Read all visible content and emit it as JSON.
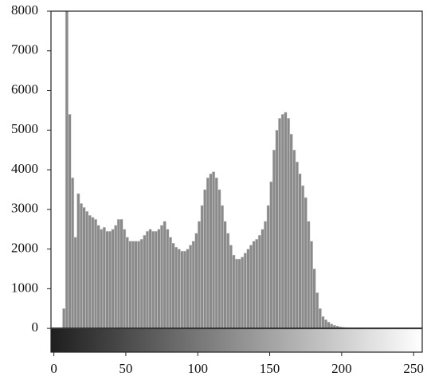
{
  "chart_data": {
    "type": "histogram",
    "bins": [
      0,
      2,
      4,
      6,
      8,
      10,
      12,
      14,
      16,
      18,
      20,
      22,
      24,
      26,
      28,
      30,
      32,
      34,
      36,
      38,
      40,
      42,
      44,
      46,
      48,
      50,
      52,
      54,
      56,
      58,
      60,
      62,
      64,
      66,
      68,
      70,
      72,
      74,
      76,
      78,
      80,
      82,
      84,
      86,
      88,
      90,
      92,
      94,
      96,
      98,
      100,
      102,
      104,
      106,
      108,
      110,
      112,
      114,
      116,
      118,
      120,
      122,
      124,
      126,
      128,
      130,
      132,
      134,
      136,
      138,
      140,
      142,
      144,
      146,
      148,
      150,
      152,
      154,
      156,
      158,
      160,
      162,
      164,
      166,
      168,
      170,
      172,
      174,
      176,
      178,
      180,
      182,
      184,
      186,
      188,
      190,
      192,
      194,
      196,
      198,
      200,
      202,
      204,
      206,
      208,
      210,
      212,
      214,
      216,
      218,
      220,
      222,
      224,
      226,
      228,
      230,
      232,
      234,
      236,
      238,
      240,
      242,
      244,
      246,
      248,
      250,
      252,
      254,
      256
    ],
    "values": [
      0,
      0,
      0,
      500,
      8200,
      5400,
      3800,
      2300,
      3400,
      3150,
      3050,
      2950,
      2850,
      2800,
      2750,
      2600,
      2500,
      2550,
      2450,
      2450,
      2500,
      2600,
      2750,
      2750,
      2500,
      2300,
      2200,
      2200,
      2200,
      2200,
      2250,
      2350,
      2450,
      2500,
      2450,
      2450,
      2500,
      2600,
      2700,
      2500,
      2300,
      2150,
      2050,
      2000,
      1950,
      1950,
      2000,
      2100,
      2200,
      2400,
      2700,
      3100,
      3500,
      3800,
      3900,
      3950,
      3800,
      3500,
      3100,
      2700,
      2400,
      2100,
      1850,
      1750,
      1750,
      1800,
      1900,
      2000,
      2100,
      2200,
      2250,
      2350,
      2500,
      2700,
      3100,
      3700,
      4500,
      5000,
      5300,
      5400,
      5450,
      5300,
      4900,
      4500,
      4200,
      3900,
      3600,
      3300,
      2700,
      2200,
      1500,
      900,
      500,
      300,
      220,
      160,
      110,
      80,
      60,
      40,
      30,
      20,
      15,
      10,
      8,
      0,
      0,
      0,
      0,
      0,
      0,
      0,
      0,
      0,
      0,
      0,
      0,
      0,
      0,
      0,
      0,
      0,
      0,
      0,
      0,
      0,
      0,
      0
    ],
    "color": "#8a8a8a",
    "xlim": [
      -2,
      256
    ],
    "xticks": [
      0,
      50,
      100,
      150,
      200,
      250
    ],
    "ylim": [
      -600,
      8000
    ],
    "yticks": [
      0,
      1000,
      2000,
      3000,
      4000,
      5000,
      6000,
      7000,
      8000
    ]
  }
}
